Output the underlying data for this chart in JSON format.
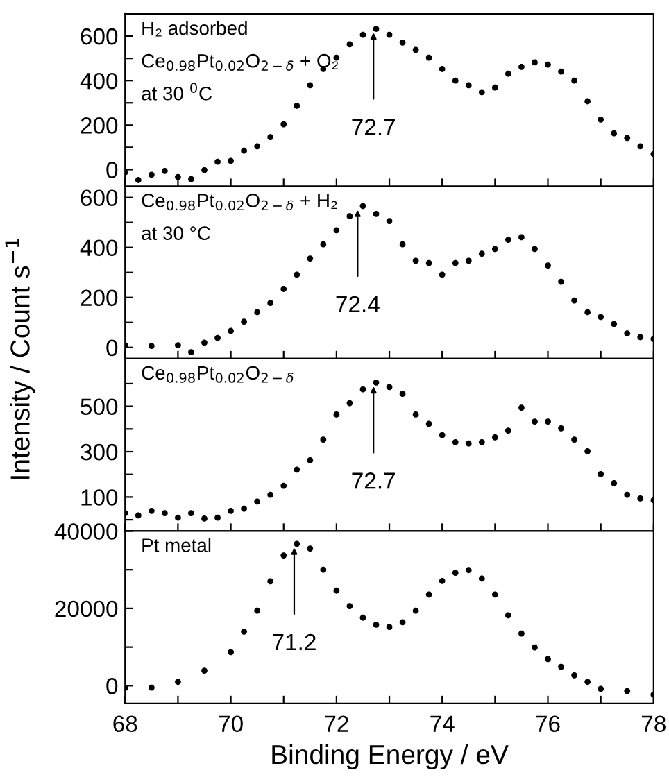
{
  "chart_data": [
    {
      "type": "scatter",
      "marker": "circle",
      "grid": false,
      "legend": false,
      "tick_labels": "y",
      "xlim": [
        68,
        78
      ],
      "ylim": [
        -75,
        700
      ],
      "xticks": [
        {
          "value": 68,
          "label": null
        },
        {
          "value": 69,
          "label": null
        },
        {
          "value": 70,
          "label": null
        },
        {
          "value": 71,
          "label": null
        },
        {
          "value": 72,
          "label": null
        },
        {
          "value": 73,
          "label": null
        },
        {
          "value": 74,
          "label": null
        },
        {
          "value": 75,
          "label": null
        },
        {
          "value": 76,
          "label": null
        },
        {
          "value": 77,
          "label": null
        },
        {
          "value": 78,
          "label": null
        }
      ],
      "yticks": [
        0,
        {
          "value": 100,
          "label": null
        },
        200,
        {
          "value": 300,
          "label": null
        },
        400,
        {
          "value": 500,
          "label": null
        },
        600
      ],
      "x": [
        68,
        68.25,
        68.5,
        68.75,
        69,
        69.25,
        69.5,
        69.75,
        70,
        70.25,
        70.5,
        70.75,
        71,
        71.25,
        71.5,
        71.75,
        72,
        72.25,
        72.5,
        72.75,
        73,
        73.25,
        73.5,
        73.75,
        74,
        74.25,
        74.5,
        74.75,
        75,
        75.25,
        75.5,
        75.75,
        76,
        76.25,
        76.5,
        76.75,
        77,
        77.25,
        77.5,
        77.75,
        78
      ],
      "series": [
        {
          "color": "#000000",
          "values": [
            -12,
            -47,
            -23,
            -6,
            -33,
            -43,
            -2,
            35,
            39,
            85,
            105,
            146,
            204,
            287,
            379,
            452,
            503,
            563,
            606,
            633,
            606,
            571,
            538,
            503,
            452,
            400,
            379,
            348,
            369,
            431,
            462,
            482,
            472,
            441,
            400,
            307,
            225,
            163,
            142,
            105,
            70
          ]
        }
      ],
      "annotations": [
        "H₂ adsorbed",
        "Ce$_{0.98}$Pt$_{0.02}$O$_{2−δ}$ + O₂",
        "at 30 $^{0}$C",
        {
          "text": "72.7",
          "x": 72.7,
          "y": 633
        }
      ]
    },
    {
      "type": "scatter",
      "marker": "circle",
      "grid": false,
      "legend": false,
      "tick_labels": "y",
      "xlim": [
        68,
        78
      ],
      "ylim": [
        -45,
        645
      ],
      "xticks": [
        {
          "value": 68,
          "label": null
        },
        {
          "value": 69,
          "label": null
        },
        {
          "value": 70,
          "label": null
        },
        {
          "value": 71,
          "label": null
        },
        {
          "value": 72,
          "label": null
        },
        {
          "value": 73,
          "label": null
        },
        {
          "value": 74,
          "label": null
        },
        {
          "value": 75,
          "label": null
        },
        {
          "value": 76,
          "label": null
        },
        {
          "value": 77,
          "label": null
        },
        {
          "value": 78,
          "label": null
        }
      ],
      "yticks": [
        0,
        {
          "value": 100,
          "label": null
        },
        200,
        {
          "value": 300,
          "label": null
        },
        400,
        {
          "value": 500,
          "label": null
        },
        600
      ],
      "x": [
        68,
        68.5,
        69,
        69.25,
        69.5,
        69.75,
        70,
        70.25,
        70.5,
        70.75,
        71,
        71.25,
        71.5,
        71.75,
        72,
        72.25,
        72.5,
        72.75,
        73,
        73.25,
        73.5,
        73.75,
        74,
        74.25,
        74.5,
        74.75,
        75,
        75.25,
        75.5,
        75.75,
        76,
        76.25,
        76.5,
        76.75,
        77,
        77.25,
        77.5,
        77.75,
        78
      ],
      "series": [
        {
          "color": "#000000",
          "values": [
            9,
            6,
            9,
            -19,
            19,
            38,
            66,
            103,
            141,
            178,
            234,
            291,
            356,
            413,
            469,
            525,
            566,
            534,
            506,
            413,
            347,
            338,
            291,
            338,
            347,
            375,
            394,
            431,
            441,
            394,
            328,
            263,
            188,
            141,
            122,
            94,
            56,
            41,
            34
          ]
        }
      ],
      "annotations": [
        "Ce$_{0.98}$Pt$_{0.02}$O$_{2−δ}$ + H₂",
        "at 30 °C",
        {
          "text": "72.4",
          "x": 72.4,
          "y": 566
        }
      ]
    },
    {
      "type": "scatter",
      "marker": "circle",
      "grid": false,
      "legend": false,
      "tick_labels": "y",
      "xlim": [
        68,
        78
      ],
      "ylim": [
        -50,
        710
      ],
      "ylabel": "Intensity / Count s$^{−1}$",
      "xticks": [
        {
          "value": 68,
          "label": null
        },
        {
          "value": 69,
          "label": null
        },
        {
          "value": 70,
          "label": null
        },
        {
          "value": 71,
          "label": null
        },
        {
          "value": 72,
          "label": null
        },
        {
          "value": 73,
          "label": null
        },
        {
          "value": 74,
          "label": null
        },
        {
          "value": 75,
          "label": null
        },
        {
          "value": 76,
          "label": null
        },
        {
          "value": 77,
          "label": null
        },
        {
          "value": 78,
          "label": null
        }
      ],
      "yticks": [
        {
          "value": 0,
          "label": null
        },
        100,
        {
          "value": 200,
          "label": null
        },
        300,
        {
          "value": 400,
          "label": null
        },
        500,
        {
          "value": 600,
          "label": null
        }
      ],
      "x": [
        68,
        68.25,
        68.5,
        68.75,
        69,
        69.25,
        69.5,
        69.75,
        70,
        70.25,
        70.5,
        70.75,
        71,
        71.25,
        71.5,
        71.75,
        72,
        72.25,
        72.5,
        72.75,
        73,
        73.25,
        73.5,
        73.75,
        74,
        74.25,
        74.5,
        74.75,
        75,
        75.25,
        75.5,
        75.75,
        76,
        76.25,
        76.5,
        76.75,
        77,
        77.25,
        77.5,
        77.75,
        78
      ],
      "series": [
        {
          "color": "#000000",
          "values": [
            29,
            19,
            39,
            29,
            9,
            29,
            5,
            9,
            39,
            49,
            80,
            110,
            150,
            221,
            262,
            353,
            464,
            514,
            575,
            605,
            585,
            555,
            464,
            423,
            373,
            342,
            336,
            342,
            363,
            393,
            494,
            433,
            433,
            403,
            353,
            302,
            201,
            161,
            110,
            94,
            86
          ]
        }
      ],
      "annotations": [
        "Ce$_{0.98}$Pt$_{0.02}$O$_{2−δ}$",
        {
          "text": "72.7",
          "x": 72.7,
          "y": 605
        }
      ]
    },
    {
      "type": "scatter",
      "marker": "circle",
      "grid": false,
      "legend": false,
      "xlim": [
        68,
        78
      ],
      "ylim": [
        -4600,
        40000
      ],
      "xlabel": "Binding Energy / eV",
      "xticks": [
        68,
        {
          "value": 69,
          "label": null
        },
        70,
        {
          "value": 71,
          "label": null
        },
        72,
        {
          "value": 73,
          "label": null
        },
        74,
        {
          "value": 75,
          "label": null
        },
        76,
        {
          "value": 77,
          "label": null
        },
        78
      ],
      "yticks": [
        0,
        {
          "value": 10000,
          "label": null
        },
        20000,
        {
          "value": 30000,
          "label": null
        },
        40000
      ],
      "x": [
        68,
        68.5,
        69,
        69.5,
        70,
        70.25,
        70.5,
        70.75,
        71,
        71.25,
        71.5,
        71.75,
        72,
        72.25,
        72.5,
        72.75,
        73,
        73.25,
        73.5,
        73.75,
        74,
        74.25,
        74.5,
        74.75,
        75,
        75.25,
        75.5,
        75.75,
        76,
        76.25,
        76.5,
        76.75,
        77,
        77.5,
        78
      ],
      "series": [
        {
          "color": "#000000",
          "values": [
            -600,
            -500,
            1000,
            3900,
            8700,
            14000,
            19400,
            27000,
            33700,
            36700,
            35500,
            30000,
            24600,
            20600,
            17600,
            15800,
            15200,
            16400,
            19400,
            23600,
            27100,
            29200,
            29900,
            27700,
            23600,
            18200,
            13500,
            9900,
            6900,
            4900,
            2700,
            1000,
            -800,
            -1400,
            -2300
          ]
        }
      ],
      "annotations": [
        "Pt metal",
        {
          "text": "71.2",
          "x": 71.2,
          "y": 36700
        }
      ]
    }
  ]
}
